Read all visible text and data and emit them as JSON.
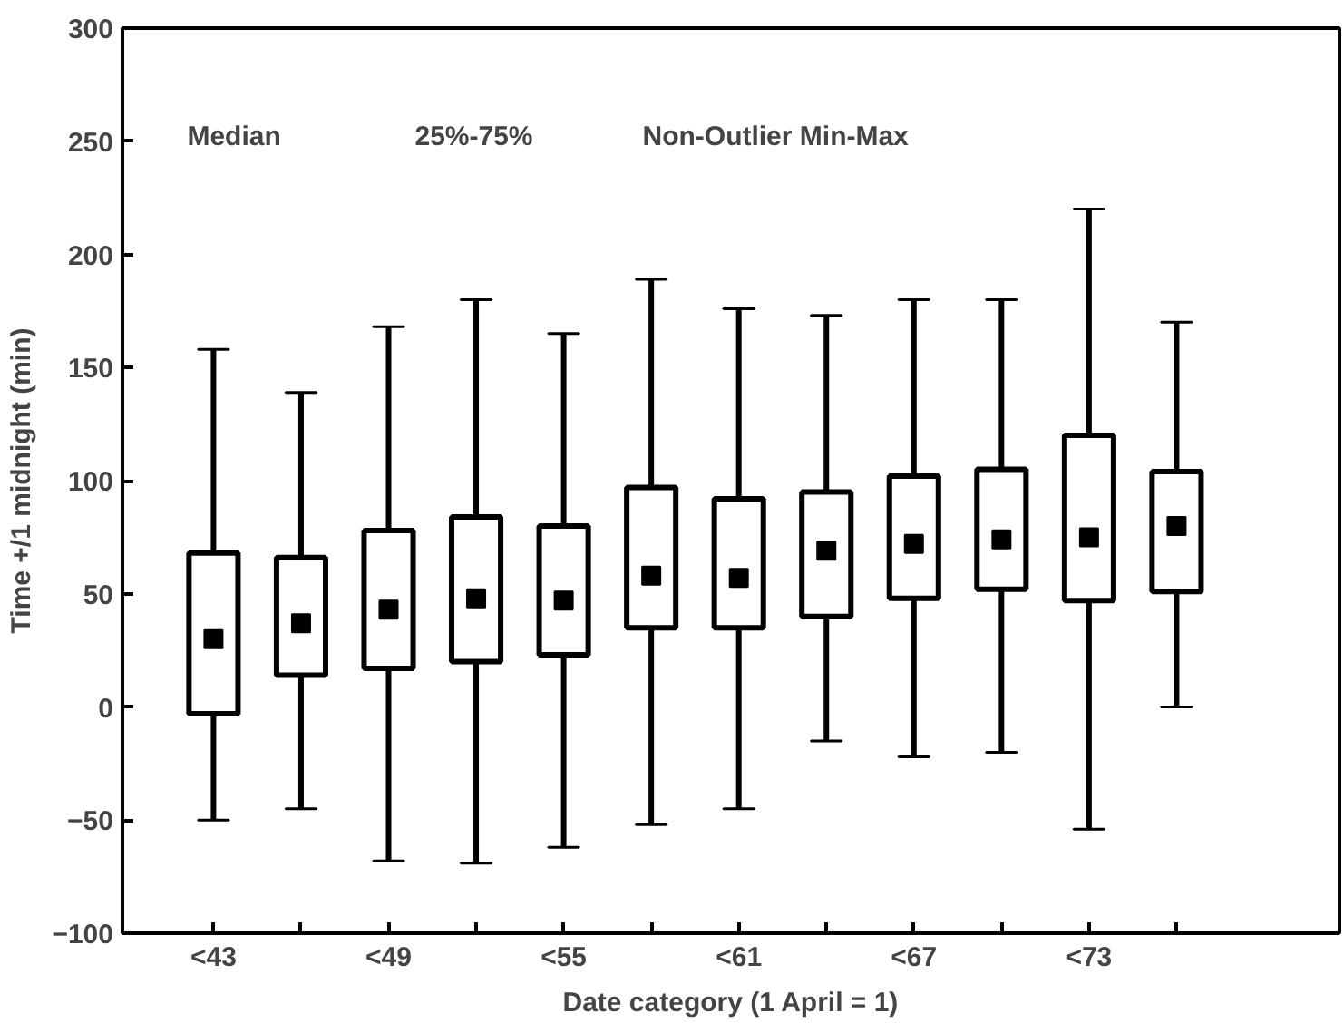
{
  "chart_data": {
    "type": "box",
    "xlabel": "Date category (1 April = 1)",
    "ylabel": "Time +/1 midnight (min)",
    "categories": [
      "<43",
      null,
      "<49",
      null,
      "<55",
      null,
      "<61",
      null,
      "<67",
      null,
      "<73",
      null
    ],
    "boxes": [
      {
        "low": -50,
        "q1": -3,
        "median": 30,
        "q3": 68,
        "high": 158
      },
      {
        "low": -45,
        "q1": 14,
        "median": 37,
        "q3": 66,
        "high": 139
      },
      {
        "low": -68,
        "q1": 17,
        "median": 43,
        "q3": 78,
        "high": 168
      },
      {
        "low": -69,
        "q1": 20,
        "median": 48,
        "q3": 84,
        "high": 180
      },
      {
        "low": -62,
        "q1": 23,
        "median": 47,
        "q3": 80,
        "high": 165
      },
      {
        "low": -52,
        "q1": 35,
        "median": 58,
        "q3": 97,
        "high": 189
      },
      {
        "low": -45,
        "q1": 35,
        "median": 57,
        "q3": 92,
        "high": 176
      },
      {
        "low": -15,
        "q1": 40,
        "median": 69,
        "q3": 95,
        "high": 173
      },
      {
        "low": -22,
        "q1": 48,
        "median": 72,
        "q3": 102,
        "high": 180
      },
      {
        "low": -20,
        "q1": 52,
        "median": 74,
        "q3": 105,
        "high": 180
      },
      {
        "low": -54,
        "q1": 47,
        "median": 75,
        "q3": 120,
        "high": 220
      },
      {
        "low": 0,
        "q1": 51,
        "median": 80,
        "q3": 104,
        "high": 170
      }
    ],
    "color": "#000000",
    "annotations": [
      "Median",
      "25%-75%",
      "Non-Outlier Min-Max"
    ],
    "ylim": [
      -100,
      300
    ],
    "yticks": [
      -100,
      -50,
      0,
      50,
      100,
      150,
      200,
      250,
      300
    ],
    "grid": false
  }
}
